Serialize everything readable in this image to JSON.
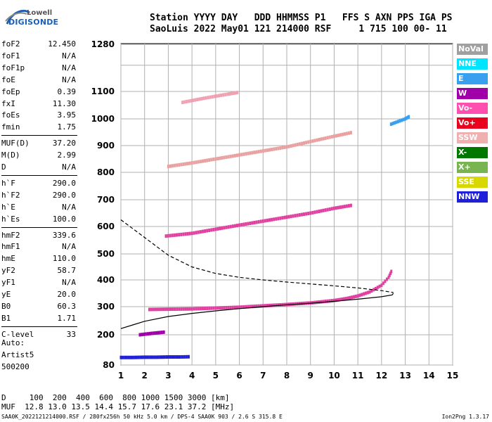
{
  "logo": {
    "top": "Lowell",
    "bottom": "DIGISONDE"
  },
  "header": {
    "line1": "Station YYYY DAY   DDD HHMMSS P1   FFS S AXN PPS IGA PS",
    "line2": "SaoLuis 2022 May01 121 214000 RSF     1 715 100 00- 11"
  },
  "params": [
    {
      "name": "foF2",
      "value": "12.450"
    },
    {
      "name": "foF1",
      "value": "N/A"
    },
    {
      "name": "foF1p",
      "value": "N/A"
    },
    {
      "name": "foE",
      "value": "N/A"
    },
    {
      "name": "foEp",
      "value": "0.39"
    },
    {
      "name": "fxI",
      "value": "11.30"
    },
    {
      "name": "foEs",
      "value": "3.95"
    },
    {
      "name": "fmin",
      "value": "1.75"
    },
    {
      "name": "MUF(D)",
      "value": "37.20"
    },
    {
      "name": "M(D)",
      "value": "2.99"
    },
    {
      "name": "D",
      "value": "N/A"
    },
    {
      "name": "h`F",
      "value": "290.0"
    },
    {
      "name": "h`F2",
      "value": "290.0"
    },
    {
      "name": "h`E",
      "value": "N/A"
    },
    {
      "name": "h`Es",
      "value": "100.0"
    },
    {
      "name": "hmF2",
      "value": "339.6"
    },
    {
      "name": "hmF1",
      "value": "N/A"
    },
    {
      "name": "hmE",
      "value": "110.0"
    },
    {
      "name": "yF2",
      "value": "58.7"
    },
    {
      "name": "yF1",
      "value": "N/A"
    },
    {
      "name": "yE",
      "value": "20.0"
    },
    {
      "name": "B0",
      "value": "60.3"
    },
    {
      "name": "B1",
      "value": "1.71"
    },
    {
      "name": "C-level",
      "value": "33"
    }
  ],
  "auto": {
    "line1": "Auto:",
    "line2": "Artist5",
    "line3": "500200"
  },
  "footer": {
    "d_line": "D     100  200  400  600  800 1000 1500 3000 [km]",
    "muf_line": "MUF  12.8 13.0 13.5 14.4 15.7 17.6 23.1 37.2 [MHz]",
    "file_line": "SAA0K_2022121214000.RSF / 280fx256h 50 kHz 5.0 km / DPS-4 SAA0K 903 / 2.6 S 315.8 E",
    "version": "Ion2Png 1.3.17"
  },
  "legend": [
    {
      "label": "NoVal",
      "color": "#a0a0a0"
    },
    {
      "label": "NNE",
      "color": "#00e5ff"
    },
    {
      "label": "E",
      "color": "#39a0f0"
    },
    {
      "label": "W",
      "color": "#a000a8"
    },
    {
      "label": "Vo-",
      "color": "#ff50b0"
    },
    {
      "label": "Vo+",
      "color": "#e8001c"
    },
    {
      "label": "SSW",
      "color": "#f0b0b0"
    },
    {
      "label": "X-",
      "color": "#007800"
    },
    {
      "label": "X+",
      "color": "#78b450"
    },
    {
      "label": "SSE",
      "color": "#d8d800"
    },
    {
      "label": "NNW",
      "color": "#2020d8"
    }
  ],
  "chart_data": {
    "type": "scatter",
    "xlabel": "",
    "ylabel": "",
    "xlim": [
      1,
      15
    ],
    "ylim": [
      80,
      1300
    ],
    "x_ticks": [
      1,
      2,
      3,
      4,
      5,
      6,
      7,
      8,
      9,
      10,
      11,
      12,
      13,
      14,
      15
    ],
    "y_ticks": [
      80,
      200,
      300,
      400,
      500,
      600,
      700,
      800,
      900,
      1000,
      1100,
      1280
    ],
    "grid": true,
    "echo_traces": [
      {
        "name": "F2 trace",
        "color": "#e040a0",
        "points": [
          [
            2.2,
            290
          ],
          [
            3,
            291
          ],
          [
            4,
            292
          ],
          [
            5,
            295
          ],
          [
            6,
            298
          ],
          [
            7,
            303
          ],
          [
            8,
            308
          ],
          [
            9,
            314
          ],
          [
            10,
            323
          ],
          [
            10.5,
            330
          ],
          [
            11,
            340
          ],
          [
            11.5,
            355
          ],
          [
            12,
            380
          ],
          [
            12.3,
            410
          ],
          [
            12.45,
            440
          ]
        ]
      },
      {
        "name": "F2 second hop",
        "color": "#e040a0",
        "points": [
          [
            2.9,
            565
          ],
          [
            4,
            575
          ],
          [
            5,
            590
          ],
          [
            6,
            605
          ],
          [
            7,
            620
          ],
          [
            8,
            635
          ],
          [
            9,
            650
          ],
          [
            10,
            668
          ],
          [
            10.8,
            680
          ]
        ]
      },
      {
        "name": "F2 third hop",
        "color": "#e8a0a0",
        "points": [
          [
            3,
            822
          ],
          [
            4,
            835
          ],
          [
            5,
            850
          ],
          [
            6,
            865
          ],
          [
            7,
            880
          ],
          [
            8,
            895
          ],
          [
            9,
            915
          ],
          [
            10,
            935
          ],
          [
            10.8,
            950
          ]
        ]
      },
      {
        "name": "F2 fourth hop",
        "color": "#f0a0b0",
        "points": [
          [
            3.6,
            1060
          ],
          [
            4.5,
            1075
          ],
          [
            5.5,
            1090
          ],
          [
            6,
            1097
          ]
        ]
      },
      {
        "name": "high-frequency trace",
        "color": "#39a0f0",
        "points": [
          [
            12.4,
            980
          ],
          [
            12.7,
            990
          ],
          [
            13,
            1000
          ],
          [
            13.2,
            1010
          ]
        ]
      },
      {
        "name": "Es trace",
        "color": "#2020d8",
        "points": [
          [
            1,
            110
          ],
          [
            1.5,
            110
          ],
          [
            2,
            111
          ],
          [
            2.5,
            111
          ],
          [
            3,
            112
          ],
          [
            3.5,
            112
          ],
          [
            3.95,
            113
          ]
        ]
      },
      {
        "name": "low echoes",
        "color": "#a000a8",
        "points": [
          [
            1.8,
            200
          ],
          [
            2.3,
            205
          ],
          [
            2.9,
            210
          ]
        ]
      }
    ],
    "profile_solid": [
      [
        1,
        222
      ],
      [
        1.5,
        235
      ],
      [
        2,
        248
      ],
      [
        3,
        265
      ],
      [
        4,
        276
      ],
      [
        5,
        285
      ],
      [
        6,
        293
      ],
      [
        7,
        300
      ],
      [
        8,
        307
      ],
      [
        9,
        313
      ],
      [
        10,
        320
      ],
      [
        11,
        328
      ],
      [
        12,
        337
      ],
      [
        12.45,
        344
      ],
      [
        12.5,
        350
      ]
    ],
    "profile_dashed": [
      [
        1,
        625
      ],
      [
        2,
        560
      ],
      [
        3,
        495
      ],
      [
        4,
        450
      ],
      [
        5,
        425
      ],
      [
        6,
        410
      ],
      [
        7,
        400
      ],
      [
        8,
        392
      ],
      [
        9,
        385
      ],
      [
        10,
        378
      ],
      [
        11,
        370
      ],
      [
        12,
        360
      ],
      [
        12.5,
        353
      ]
    ]
  }
}
